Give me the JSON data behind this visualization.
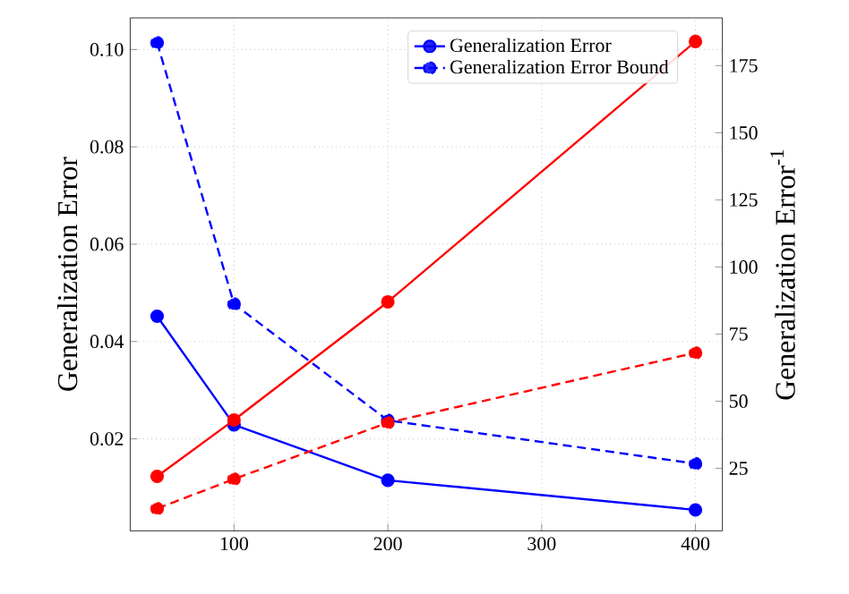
{
  "chart_data": {
    "type": "line",
    "xlabel": null,
    "ylabel": "Generalization Error",
    "y2label": "Generalization Error$^{-1}$",
    "x": [
      50,
      100,
      200,
      400
    ],
    "series": [
      {
        "name": "Generalization Error",
        "color": "#0000ff",
        "line_style": "solid",
        "values": [
          0.0452,
          0.0229,
          0.0115,
          0.0054
        ]
      },
      {
        "name": "Generalization Error Bound",
        "color": "#0000ff",
        "line_style": "dashed",
        "values": [
          0.1014,
          0.0477,
          0.0238,
          0.0149
        ]
      },
      {
        "color": "#ff0000",
        "line_style": "solid",
        "axis": "y2",
        "values": [
          22,
          43,
          87,
          184
        ]
      },
      {
        "color": "#ff0000",
        "line_style": "dashed",
        "axis": "y2",
        "values": [
          10,
          21,
          42,
          68
        ]
      }
    ],
    "xlim": [
      32.5,
      417.5
    ],
    "xticks": [
      100,
      200,
      300,
      400
    ],
    "ylim": [
      0.0011,
      0.1065
    ],
    "yticks": [
      {
        "value": 0.02,
        "label": "0.02"
      },
      {
        "value": 0.04,
        "label": "0.04"
      },
      {
        "value": 0.06,
        "label": "0.06"
      },
      {
        "value": 0.08,
        "label": "0.08"
      },
      {
        "value": 0.1,
        "label": "0.10"
      }
    ],
    "y2lim": [
      1.7,
      192.8
    ],
    "y2ticks": [
      25,
      50,
      75,
      100,
      125,
      150,
      175
    ],
    "grid": true,
    "legend": "top right",
    "marker": "circle"
  }
}
